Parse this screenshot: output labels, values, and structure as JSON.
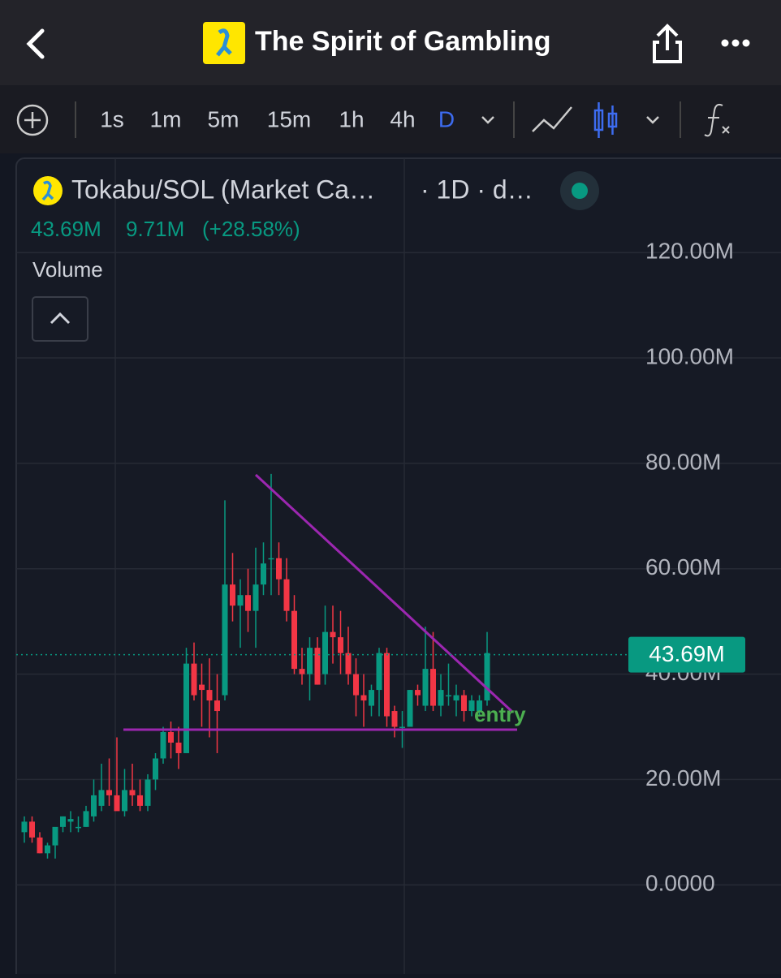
{
  "header": {
    "title": "The Spirit of Gambling"
  },
  "toolbar": {
    "intervals": [
      "1s",
      "1m",
      "5m",
      "15m",
      "1h",
      "4h",
      "D"
    ]
  },
  "legend": {
    "symbol": "Tokabu/SOL (Market Ca…",
    "interval": "· 1D · d…",
    "last": "43.69M",
    "change": "9.71M",
    "change_pct": "(+28.58%)",
    "volume": "Volume"
  },
  "chart_data": {
    "type": "candlestick",
    "open": [
      10,
      12,
      9,
      6,
      7.5,
      11,
      12,
      11,
      11,
      13,
      15,
      18,
      17,
      14,
      18,
      17,
      15,
      20,
      24,
      29,
      27,
      25,
      42,
      38,
      37,
      35,
      36,
      57,
      53,
      55,
      52,
      57,
      62,
      62,
      58,
      52,
      41,
      40,
      45,
      40,
      48,
      47,
      44,
      40,
      36,
      34,
      37,
      44,
      33,
      30,
      30,
      37,
      34,
      41,
      34,
      36,
      35,
      36,
      33,
      33,
      35
    ],
    "high": [
      13,
      13,
      10,
      8,
      10,
      13,
      14,
      13,
      15,
      20,
      23,
      24,
      28,
      22,
      23,
      20,
      21,
      25,
      30,
      31,
      30,
      45,
      46,
      42,
      43,
      40,
      73,
      63,
      58,
      60,
      64,
      65,
      78,
      65,
      62,
      55,
      45,
      47,
      47,
      53,
      53,
      52,
      49,
      43,
      40,
      38,
      45,
      45,
      34,
      33,
      37,
      38,
      49,
      48,
      40,
      42,
      38,
      37,
      36,
      36,
      48
    ],
    "low": [
      8,
      8,
      6,
      5,
      5,
      10,
      10,
      10,
      11,
      12,
      14,
      15,
      15,
      13,
      15,
      14,
      14,
      18,
      23,
      24,
      22,
      25,
      35,
      30,
      28,
      25,
      35,
      50,
      45,
      48,
      45,
      55,
      55,
      55,
      50,
      40,
      38,
      35,
      38,
      38,
      42,
      40,
      38,
      32,
      30,
      32,
      32,
      30,
      28,
      26,
      30,
      34,
      33,
      33,
      32,
      34,
      32,
      31,
      32,
      32,
      34
    ],
    "close": [
      12,
      9,
      6,
      7.5,
      11,
      13,
      12.5,
      11,
      14,
      17,
      18,
      17,
      14,
      18,
      17,
      15,
      20,
      24,
      29,
      27,
      25,
      42,
      36,
      37,
      35,
      33,
      57,
      53,
      55,
      52,
      57,
      61,
      62,
      58,
      52,
      41,
      40,
      45,
      38,
      48,
      47,
      44,
      40,
      36,
      35,
      37,
      44,
      32,
      30,
      30,
      37,
      36,
      41,
      34,
      37,
      36,
      36,
      33,
      35,
      35,
      44
    ],
    "up_color": "#089981",
    "down_color": "#f23645",
    "ylim": [
      -16.9,
      137.9
    ],
    "yticks": [
      {
        "value": 0,
        "label": "0.0000"
      },
      {
        "value": 20,
        "label": "20.00M"
      },
      {
        "value": 40,
        "label": "40.00M"
      },
      {
        "value": 60,
        "label": "60.00M"
      },
      {
        "value": 80,
        "label": "80.00M"
      },
      {
        "value": 100,
        "label": "100.00M"
      },
      {
        "value": 120,
        "label": "120.00M"
      }
    ],
    "grid": true,
    "price_line": 43.69,
    "price_label": "43.69M",
    "annotation": "entry"
  }
}
